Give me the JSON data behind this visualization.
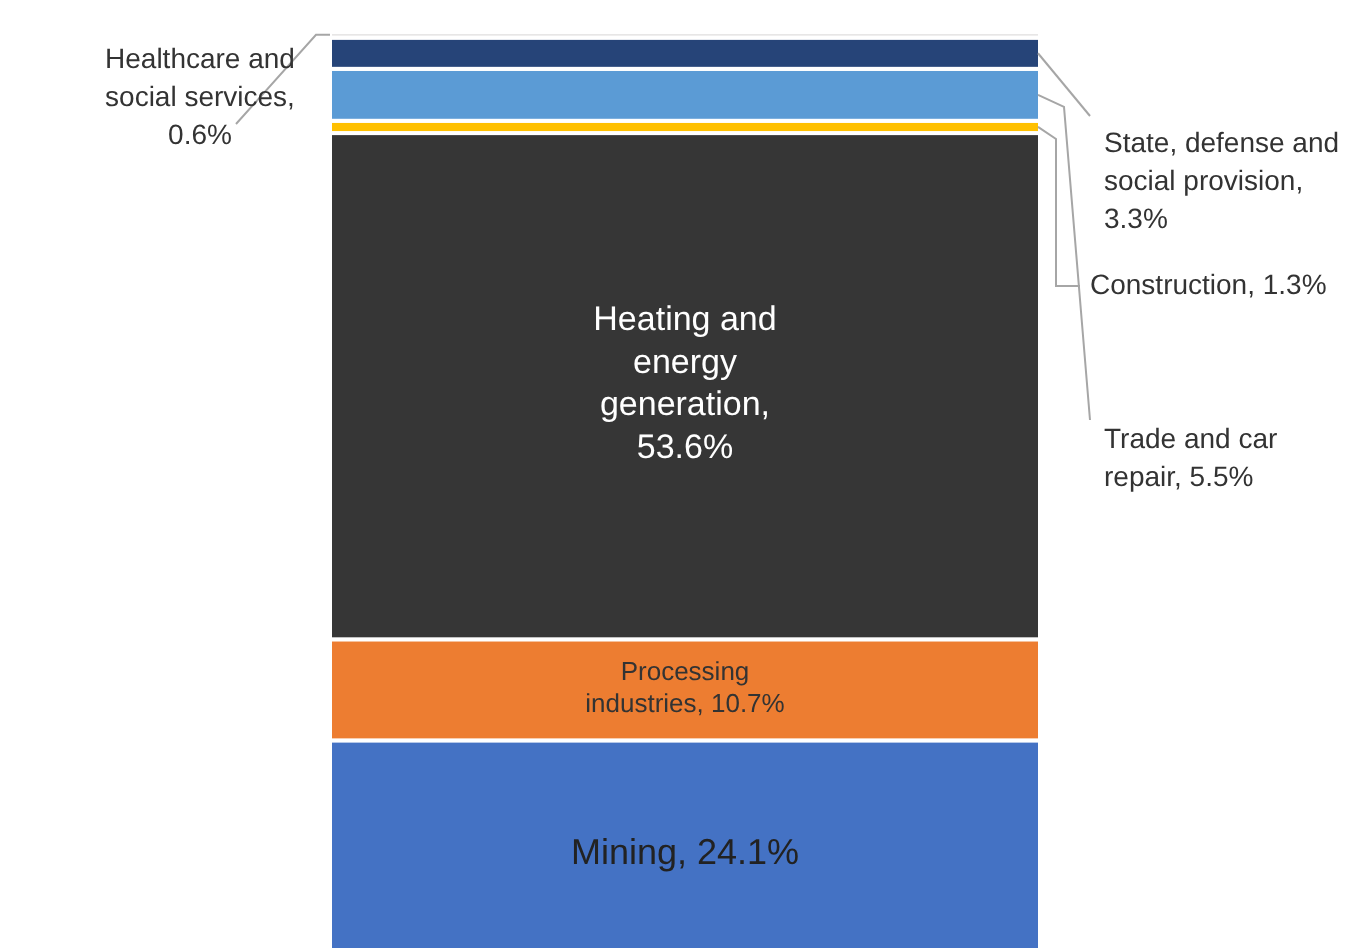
{
  "chart_data": {
    "type": "bar",
    "stacked": true,
    "categories": [
      null
    ],
    "series": [
      {
        "color": "#4472c4",
        "values": [
          24.1
        ],
        "value_labels": [
          "Mining, 24.1%"
        ]
      },
      {
        "color": "#ed7d31",
        "values": [
          10.7
        ],
        "value_labels": [
          "Processing industries, 10.7%"
        ]
      },
      {
        "color": "#363636",
        "values": [
          53.6
        ],
        "value_labels": [
          "Heating and energy generation, 53.6%"
        ]
      },
      {
        "color": "#ffc000",
        "values": [
          1.3
        ],
        "value_labels": [
          "Construction, 1.3%"
        ]
      },
      {
        "color": "#5b9bd5",
        "values": [
          5.5
        ],
        "value_labels": [
          "Trade and car repair, 5.5%"
        ]
      },
      {
        "color": "#264478",
        "values": [
          3.3
        ],
        "value_labels": [
          "State, defense and social provision, 3.3%"
        ]
      },
      {
        "color": "#e7e6e6",
        "values": [
          0.6
        ],
        "value_labels": [
          "Healthcare and social services, 0.6%"
        ]
      }
    ]
  }
}
